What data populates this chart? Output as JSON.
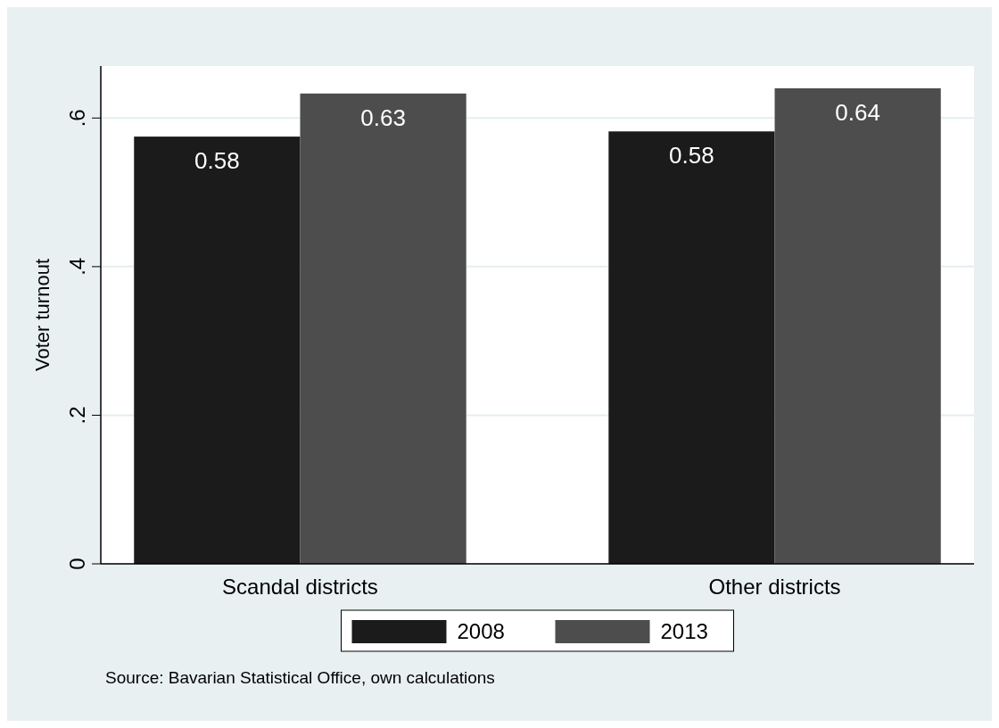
{
  "chart_data": {
    "type": "bar",
    "ylabel": "Voter turnout",
    "categories": [
      "Scandal districts",
      "Other districts"
    ],
    "series": [
      {
        "name": "2008",
        "color": "#1b1b1b",
        "values": [
          0.575,
          0.582
        ],
        "value_labels": [
          "0.58",
          "0.58"
        ]
      },
      {
        "name": "2013",
        "color": "#4d4d4d",
        "values": [
          0.633,
          0.64
        ],
        "value_labels": [
          "0.63",
          "0.64"
        ]
      }
    ],
    "ylim": [
      0,
      0.67
    ],
    "yticks": [
      0,
      {
        "value": 0.2,
        "label": ".2"
      },
      {
        "value": 0.4,
        "label": ".4"
      },
      {
        "value": 0.6,
        "label": ".6"
      }
    ],
    "grid": "y",
    "legend": "bottom",
    "annotations": [
      "Source: Bavarian Statistical Office, own calculations"
    ]
  }
}
